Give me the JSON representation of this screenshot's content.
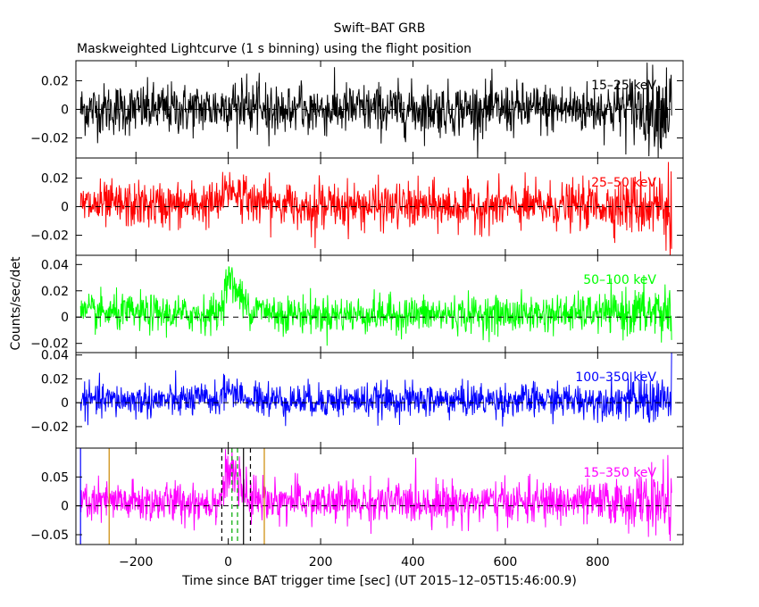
{
  "title": "Swift–BAT GRB",
  "subtitle": "Maskweighted Lightcurve (1 s binning) using the flight position",
  "chart_data": {
    "type": "line",
    "title": "Swift–BAT GRB",
    "subtitle": "Maskweighted Lightcurve (1 s binning) using the flight position",
    "xlabel": "Time since BAT trigger time [sec] (UT 2015–12–05T15:46:00.9)",
    "ylabel": "Counts/sec/det",
    "xlim": [
      -330,
      985
    ],
    "x_ticks": [
      -200,
      0,
      200,
      400,
      600,
      800
    ],
    "x_tick_labels": [
      "−200",
      "0",
      "200",
      "400",
      "600",
      "800"
    ],
    "grid": false,
    "panels": [
      {
        "name": "15–25 keV",
        "color": "#000000",
        "ylim": [
          -0.034,
          0.034
        ],
        "y_ticks": [
          -0.02,
          0,
          0.02
        ],
        "y_tick_labels": [
          "−0.02",
          "0",
          "0.02"
        ],
        "x": [
          -320,
          -200,
          -100,
          -20,
          0,
          20,
          40,
          100,
          200,
          400,
          600,
          800,
          960
        ],
        "y": [
          0,
          0,
          0,
          0.001,
          0.004,
          0.003,
          0.001,
          0,
          0,
          0,
          0,
          0.0005,
          0.001
        ],
        "scatter": 0.009,
        "peak": {
          "t": 12,
          "amp": 0.004,
          "rise": 4,
          "decay": 30
        }
      },
      {
        "name": "25–50 keV",
        "color": "#ff0000",
        "ylim": [
          -0.034,
          0.034
        ],
        "y_ticks": [
          -0.02,
          0,
          0.02
        ],
        "y_tick_labels": [
          "−0.02",
          "0",
          "0.02"
        ],
        "x": [
          -320,
          -200,
          -100,
          -20,
          0,
          20,
          40,
          100,
          200,
          400,
          600,
          800,
          960
        ],
        "y": [
          0.001,
          0.001,
          0.001,
          0.002,
          0.012,
          0.01,
          0.005,
          0.002,
          0.001,
          0,
          0,
          0.001,
          0.001
        ],
        "scatter": 0.008,
        "peak": {
          "t": 12,
          "amp": 0.012,
          "rise": 4,
          "decay": 35
        }
      },
      {
        "name": "50–100 keV",
        "color": "#00ff00",
        "ylim": [
          -0.027,
          0.047
        ],
        "y_ticks": [
          -0.02,
          0,
          0.02,
          0.04
        ],
        "y_tick_labels": [
          "−0.02",
          "0",
          "0.02",
          "0.04"
        ],
        "x": [
          -320,
          -200,
          -100,
          -20,
          0,
          10,
          40,
          100,
          200,
          400,
          600,
          800,
          960
        ],
        "y": [
          0.003,
          0.003,
          0.002,
          0.003,
          0.03,
          0.026,
          0.008,
          0.003,
          0.002,
          0.002,
          0.002,
          0.003,
          0.004
        ],
        "scatter": 0.007,
        "peak": {
          "t": 5,
          "amp": 0.032,
          "rise": 3,
          "decay": 18
        }
      },
      {
        "name": "100–350 keV",
        "color": "#0000ff",
        "ylim": [
          -0.038,
          0.042
        ],
        "y_ticks": [
          -0.02,
          0,
          0.02,
          0.04
        ],
        "y_tick_labels": [
          "−0.02",
          "0",
          "0.02",
          "0.04"
        ],
        "x": [
          -320,
          -200,
          -100,
          -20,
          0,
          10,
          40,
          100,
          200,
          400,
          600,
          800,
          960
        ],
        "y": [
          0.002,
          0.002,
          0.002,
          0.003,
          0.012,
          0.01,
          0.004,
          0.002,
          0.002,
          0.002,
          0.002,
          0.002,
          0.002
        ],
        "scatter": 0.007,
        "peak": {
          "t": 5,
          "amp": 0.012,
          "rise": 3,
          "decay": 15
        }
      },
      {
        "name": "15–350 keV",
        "color": "#ff00ff",
        "ylim": [
          -0.067,
          0.1
        ],
        "y_ticks": [
          -0.05,
          0,
          0.05
        ],
        "y_tick_labels": [
          "−0.05",
          "0",
          "0.05"
        ],
        "x": [
          -320,
          -200,
          -100,
          -20,
          0,
          10,
          40,
          100,
          200,
          400,
          600,
          800,
          960
        ],
        "y": [
          0.006,
          0.006,
          0.006,
          0.008,
          0.06,
          0.05,
          0.02,
          0.008,
          0.006,
          0.006,
          0.006,
          0.006,
          0.008
        ],
        "scatter": 0.018,
        "peak": {
          "t": 5,
          "amp": 0.065,
          "rise": 3,
          "decay": 20
        },
        "markers": [
          {
            "t": -320,
            "color": "#0000ff",
            "style": "solid"
          },
          {
            "t": -258,
            "color": "#cc8800",
            "style": "solid"
          },
          {
            "t": -14,
            "color": "#000000",
            "style": "dashed"
          },
          {
            "t": 8,
            "color": "#00aa00",
            "style": "dashed"
          },
          {
            "t": 20,
            "color": "#00aa00",
            "style": "dashed"
          },
          {
            "t": 33,
            "color": "#000000",
            "style": "solid"
          },
          {
            "t": 48,
            "color": "#000000",
            "style": "dashed"
          },
          {
            "t": 78,
            "color": "#cc8800",
            "style": "solid"
          }
        ]
      }
    ]
  }
}
